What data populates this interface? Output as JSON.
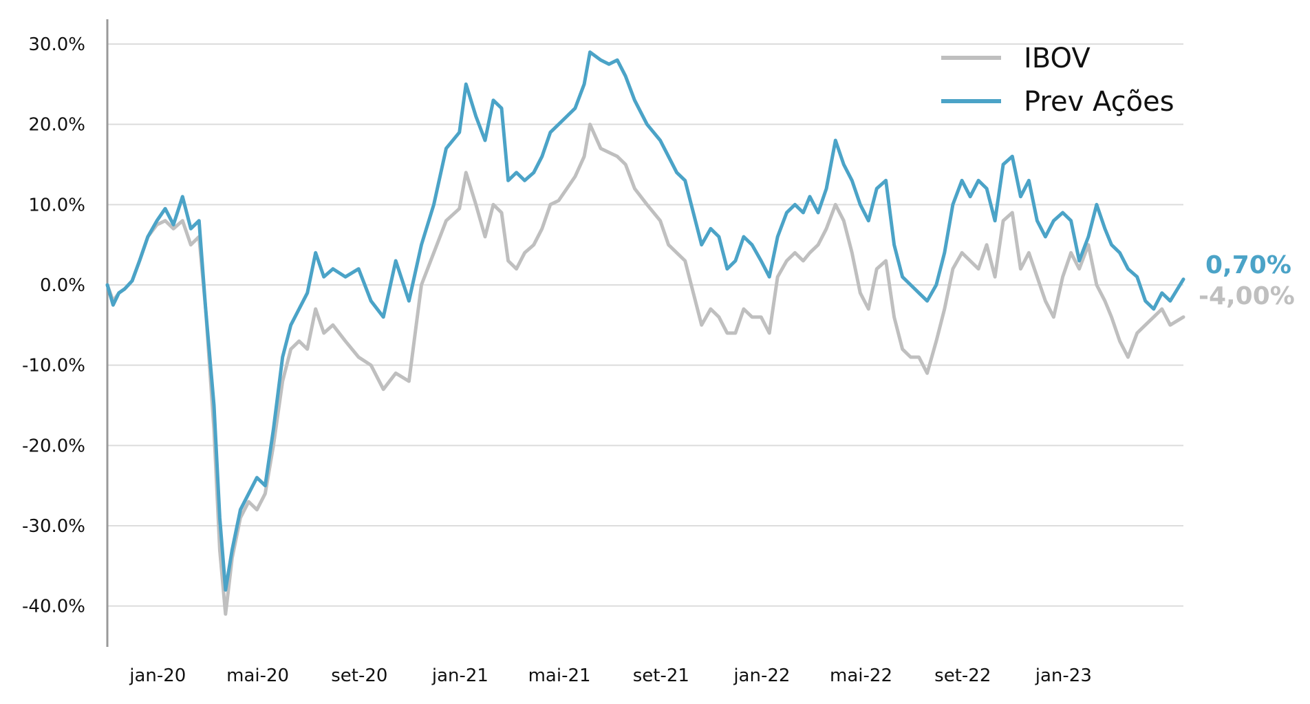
{
  "chart_data": {
    "type": "line",
    "title": "",
    "xlabel": "",
    "ylabel": "",
    "y_unit": "%",
    "ylim": [
      -45,
      33
    ],
    "yticks": [
      30,
      20,
      10,
      0,
      -10,
      -20,
      -30,
      -40
    ],
    "ytick_labels": [
      "30.0%",
      "20.0%",
      "10.0%",
      "0.0%",
      "-10.0%",
      "-20.0%",
      "-30.0%",
      "-40.0%"
    ],
    "xlim": [
      "2019-11-01",
      "2023-05-26"
    ],
    "xticks": [
      "2020-01-01",
      "2020-05-01",
      "2020-09-01",
      "2021-01-01",
      "2021-05-01",
      "2021-09-01",
      "2022-01-01",
      "2022-05-01",
      "2022-09-01",
      "2023-01-01"
    ],
    "xtick_labels": [
      "jan-20",
      "mai-20",
      "set-20",
      "jan-21",
      "mai-21",
      "set-21",
      "jan-22",
      "mai-22",
      "set-22",
      "jan-23"
    ],
    "grid": "horizontal",
    "legend": "top-right",
    "series": [
      {
        "name": "IBOV",
        "color": "#bfbfbf",
        "end_label": "-4,00%",
        "points": [
          [
            "2019-11-01",
            0.0
          ],
          [
            "2019-11-08",
            -2.0
          ],
          [
            "2019-11-15",
            -1.0
          ],
          [
            "2019-11-22",
            -0.5
          ],
          [
            "2019-12-01",
            0.5
          ],
          [
            "2019-12-10",
            3.0
          ],
          [
            "2019-12-20",
            6.0
          ],
          [
            "2019-12-31",
            7.5
          ],
          [
            "2020-01-10",
            8.0
          ],
          [
            "2020-01-20",
            7.0
          ],
          [
            "2020-01-31",
            8.0
          ],
          [
            "2020-02-10",
            5.0
          ],
          [
            "2020-02-20",
            6.0
          ],
          [
            "2020-02-28",
            -3.0
          ],
          [
            "2020-03-09",
            -18.0
          ],
          [
            "2020-03-16",
            -33.0
          ],
          [
            "2020-03-23",
            -41.0
          ],
          [
            "2020-03-31",
            -34.0
          ],
          [
            "2020-04-10",
            -29.0
          ],
          [
            "2020-04-20",
            -27.0
          ],
          [
            "2020-04-30",
            -28.0
          ],
          [
            "2020-05-10",
            -26.0
          ],
          [
            "2020-05-20",
            -20.0
          ],
          [
            "2020-05-31",
            -12.0
          ],
          [
            "2020-06-10",
            -8.0
          ],
          [
            "2020-06-20",
            -7.0
          ],
          [
            "2020-06-30",
            -8.0
          ],
          [
            "2020-07-10",
            -3.0
          ],
          [
            "2020-07-20",
            -6.0
          ],
          [
            "2020-07-31",
            -5.0
          ],
          [
            "2020-08-15",
            -7.0
          ],
          [
            "2020-08-31",
            -9.0
          ],
          [
            "2020-09-15",
            -10.0
          ],
          [
            "2020-09-30",
            -13.0
          ],
          [
            "2020-10-15",
            -11.0
          ],
          [
            "2020-10-31",
            -12.0
          ],
          [
            "2020-11-15",
            0.0
          ],
          [
            "2020-11-30",
            4.0
          ],
          [
            "2020-12-15",
            8.0
          ],
          [
            "2020-12-31",
            9.5
          ],
          [
            "2021-01-08",
            14.0
          ],
          [
            "2021-01-20",
            10.0
          ],
          [
            "2021-01-31",
            6.0
          ],
          [
            "2021-02-10",
            10.0
          ],
          [
            "2021-02-20",
            9.0
          ],
          [
            "2021-02-28",
            3.0
          ],
          [
            "2021-03-10",
            2.0
          ],
          [
            "2021-03-20",
            4.0
          ],
          [
            "2021-03-31",
            5.0
          ],
          [
            "2021-04-10",
            7.0
          ],
          [
            "2021-04-20",
            10.0
          ],
          [
            "2021-04-30",
            10.5
          ],
          [
            "2021-05-10",
            12.0
          ],
          [
            "2021-05-20",
            13.5
          ],
          [
            "2021-05-31",
            16.0
          ],
          [
            "2021-06-07",
            20.0
          ],
          [
            "2021-06-20",
            17.0
          ],
          [
            "2021-06-30",
            16.5
          ],
          [
            "2021-07-10",
            16.0
          ],
          [
            "2021-07-20",
            15.0
          ],
          [
            "2021-07-31",
            12.0
          ],
          [
            "2021-08-15",
            10.0
          ],
          [
            "2021-08-31",
            8.0
          ],
          [
            "2021-09-10",
            5.0
          ],
          [
            "2021-09-20",
            4.0
          ],
          [
            "2021-09-30",
            3.0
          ],
          [
            "2021-10-10",
            -1.0
          ],
          [
            "2021-10-20",
            -5.0
          ],
          [
            "2021-10-31",
            -3.0
          ],
          [
            "2021-11-10",
            -4.0
          ],
          [
            "2021-11-20",
            -6.0
          ],
          [
            "2021-11-30",
            -6.0
          ],
          [
            "2021-12-10",
            -3.0
          ],
          [
            "2021-12-20",
            -4.0
          ],
          [
            "2021-12-31",
            -4.0
          ],
          [
            "2022-01-10",
            -6.0
          ],
          [
            "2022-01-20",
            1.0
          ],
          [
            "2022-01-31",
            3.0
          ],
          [
            "2022-02-10",
            4.0
          ],
          [
            "2022-02-20",
            3.0
          ],
          [
            "2022-02-28",
            4.0
          ],
          [
            "2022-03-10",
            5.0
          ],
          [
            "2022-03-20",
            7.0
          ],
          [
            "2022-03-31",
            10.0
          ],
          [
            "2022-04-10",
            8.0
          ],
          [
            "2022-04-20",
            4.0
          ],
          [
            "2022-04-30",
            -1.0
          ],
          [
            "2022-05-10",
            -3.0
          ],
          [
            "2022-05-20",
            2.0
          ],
          [
            "2022-05-31",
            3.0
          ],
          [
            "2022-06-10",
            -4.0
          ],
          [
            "2022-06-20",
            -8.0
          ],
          [
            "2022-06-30",
            -9.0
          ],
          [
            "2022-07-10",
            -9.0
          ],
          [
            "2022-07-20",
            -11.0
          ],
          [
            "2022-07-31",
            -7.0
          ],
          [
            "2022-08-10",
            -3.0
          ],
          [
            "2022-08-20",
            2.0
          ],
          [
            "2022-08-31",
            4.0
          ],
          [
            "2022-09-10",
            3.0
          ],
          [
            "2022-09-20",
            2.0
          ],
          [
            "2022-09-30",
            5.0
          ],
          [
            "2022-10-10",
            1.0
          ],
          [
            "2022-10-20",
            8.0
          ],
          [
            "2022-10-31",
            9.0
          ],
          [
            "2022-11-10",
            2.0
          ],
          [
            "2022-11-20",
            4.0
          ],
          [
            "2022-11-30",
            1.0
          ],
          [
            "2022-12-10",
            -2.0
          ],
          [
            "2022-12-20",
            -4.0
          ],
          [
            "2022-12-31",
            1.0
          ],
          [
            "2023-01-10",
            4.0
          ],
          [
            "2023-01-20",
            2.0
          ],
          [
            "2023-01-31",
            5.0
          ],
          [
            "2023-02-10",
            0.0
          ],
          [
            "2023-02-20",
            -2.0
          ],
          [
            "2023-02-28",
            -4.0
          ],
          [
            "2023-03-10",
            -7.0
          ],
          [
            "2023-03-20",
            -9.0
          ],
          [
            "2023-03-31",
            -6.0
          ],
          [
            "2023-04-10",
            -5.0
          ],
          [
            "2023-04-20",
            -4.0
          ],
          [
            "2023-04-30",
            -3.0
          ],
          [
            "2023-05-10",
            -5.0
          ],
          [
            "2023-05-26",
            -4.0
          ]
        ]
      },
      {
        "name": "Prev Ações",
        "color": "#4ba3c7",
        "end_label": "0,70%",
        "points": [
          [
            "2019-11-01",
            0.0
          ],
          [
            "2019-11-08",
            -2.5
          ],
          [
            "2019-11-15",
            -1.0
          ],
          [
            "2019-11-22",
            -0.5
          ],
          [
            "2019-12-01",
            0.5
          ],
          [
            "2019-12-10",
            3.0
          ],
          [
            "2019-12-20",
            6.0
          ],
          [
            "2019-12-31",
            8.0
          ],
          [
            "2020-01-10",
            9.5
          ],
          [
            "2020-01-20",
            7.5
          ],
          [
            "2020-01-31",
            11.0
          ],
          [
            "2020-02-10",
            7.0
          ],
          [
            "2020-02-20",
            8.0
          ],
          [
            "2020-02-28",
            -3.0
          ],
          [
            "2020-03-09",
            -15.0
          ],
          [
            "2020-03-16",
            -29.0
          ],
          [
            "2020-03-23",
            -38.0
          ],
          [
            "2020-03-31",
            -33.0
          ],
          [
            "2020-04-10",
            -28.0
          ],
          [
            "2020-04-20",
            -26.0
          ],
          [
            "2020-04-30",
            -24.0
          ],
          [
            "2020-05-10",
            -25.0
          ],
          [
            "2020-05-20",
            -18.0
          ],
          [
            "2020-05-31",
            -9.0
          ],
          [
            "2020-06-10",
            -5.0
          ],
          [
            "2020-06-20",
            -3.0
          ],
          [
            "2020-06-30",
            -1.0
          ],
          [
            "2020-07-10",
            4.0
          ],
          [
            "2020-07-20",
            1.0
          ],
          [
            "2020-07-31",
            2.0
          ],
          [
            "2020-08-15",
            1.0
          ],
          [
            "2020-08-31",
            2.0
          ],
          [
            "2020-09-15",
            -2.0
          ],
          [
            "2020-09-30",
            -4.0
          ],
          [
            "2020-10-15",
            3.0
          ],
          [
            "2020-10-31",
            -2.0
          ],
          [
            "2020-11-15",
            5.0
          ],
          [
            "2020-11-30",
            10.0
          ],
          [
            "2020-12-15",
            17.0
          ],
          [
            "2020-12-31",
            19.0
          ],
          [
            "2021-01-08",
            25.0
          ],
          [
            "2021-01-20",
            21.0
          ],
          [
            "2021-01-31",
            18.0
          ],
          [
            "2021-02-10",
            23.0
          ],
          [
            "2021-02-20",
            22.0
          ],
          [
            "2021-02-28",
            13.0
          ],
          [
            "2021-03-10",
            14.0
          ],
          [
            "2021-03-20",
            13.0
          ],
          [
            "2021-03-31",
            14.0
          ],
          [
            "2021-04-10",
            16.0
          ],
          [
            "2021-04-20",
            19.0
          ],
          [
            "2021-04-30",
            20.0
          ],
          [
            "2021-05-10",
            21.0
          ],
          [
            "2021-05-20",
            22.0
          ],
          [
            "2021-05-31",
            25.0
          ],
          [
            "2021-06-07",
            29.0
          ],
          [
            "2021-06-20",
            28.0
          ],
          [
            "2021-06-30",
            27.5
          ],
          [
            "2021-07-10",
            28.0
          ],
          [
            "2021-07-20",
            26.0
          ],
          [
            "2021-07-31",
            23.0
          ],
          [
            "2021-08-15",
            20.0
          ],
          [
            "2021-08-31",
            18.0
          ],
          [
            "2021-09-10",
            16.0
          ],
          [
            "2021-09-20",
            14.0
          ],
          [
            "2021-09-30",
            13.0
          ],
          [
            "2021-10-10",
            9.0
          ],
          [
            "2021-10-20",
            5.0
          ],
          [
            "2021-10-31",
            7.0
          ],
          [
            "2021-11-10",
            6.0
          ],
          [
            "2021-11-20",
            2.0
          ],
          [
            "2021-11-30",
            3.0
          ],
          [
            "2021-12-10",
            6.0
          ],
          [
            "2021-12-20",
            5.0
          ],
          [
            "2021-12-31",
            3.0
          ],
          [
            "2022-01-10",
            1.0
          ],
          [
            "2022-01-20",
            6.0
          ],
          [
            "2022-01-31",
            9.0
          ],
          [
            "2022-02-10",
            10.0
          ],
          [
            "2022-02-20",
            9.0
          ],
          [
            "2022-02-28",
            11.0
          ],
          [
            "2022-03-10",
            9.0
          ],
          [
            "2022-03-20",
            12.0
          ],
          [
            "2022-03-31",
            18.0
          ],
          [
            "2022-04-10",
            15.0
          ],
          [
            "2022-04-20",
            13.0
          ],
          [
            "2022-04-30",
            10.0
          ],
          [
            "2022-05-10",
            8.0
          ],
          [
            "2022-05-20",
            12.0
          ],
          [
            "2022-05-31",
            13.0
          ],
          [
            "2022-06-10",
            5.0
          ],
          [
            "2022-06-20",
            1.0
          ],
          [
            "2022-06-30",
            0.0
          ],
          [
            "2022-07-10",
            -1.0
          ],
          [
            "2022-07-20",
            -2.0
          ],
          [
            "2022-07-31",
            0.0
          ],
          [
            "2022-08-10",
            4.0
          ],
          [
            "2022-08-20",
            10.0
          ],
          [
            "2022-08-31",
            13.0
          ],
          [
            "2022-09-10",
            11.0
          ],
          [
            "2022-09-20",
            13.0
          ],
          [
            "2022-09-30",
            12.0
          ],
          [
            "2022-10-10",
            8.0
          ],
          [
            "2022-10-20",
            15.0
          ],
          [
            "2022-10-31",
            16.0
          ],
          [
            "2022-11-10",
            11.0
          ],
          [
            "2022-11-20",
            13.0
          ],
          [
            "2022-11-30",
            8.0
          ],
          [
            "2022-12-10",
            6.0
          ],
          [
            "2022-12-20",
            8.0
          ],
          [
            "2022-12-31",
            9.0
          ],
          [
            "2023-01-10",
            8.0
          ],
          [
            "2023-01-20",
            3.0
          ],
          [
            "2023-01-31",
            6.0
          ],
          [
            "2023-02-10",
            10.0
          ],
          [
            "2023-02-20",
            7.0
          ],
          [
            "2023-02-28",
            5.0
          ],
          [
            "2023-03-10",
            4.0
          ],
          [
            "2023-03-20",
            2.0
          ],
          [
            "2023-03-31",
            1.0
          ],
          [
            "2023-04-10",
            -2.0
          ],
          [
            "2023-04-20",
            -3.0
          ],
          [
            "2023-04-30",
            -1.0
          ],
          [
            "2023-05-10",
            -2.0
          ],
          [
            "2023-05-26",
            0.7
          ]
        ]
      }
    ]
  }
}
